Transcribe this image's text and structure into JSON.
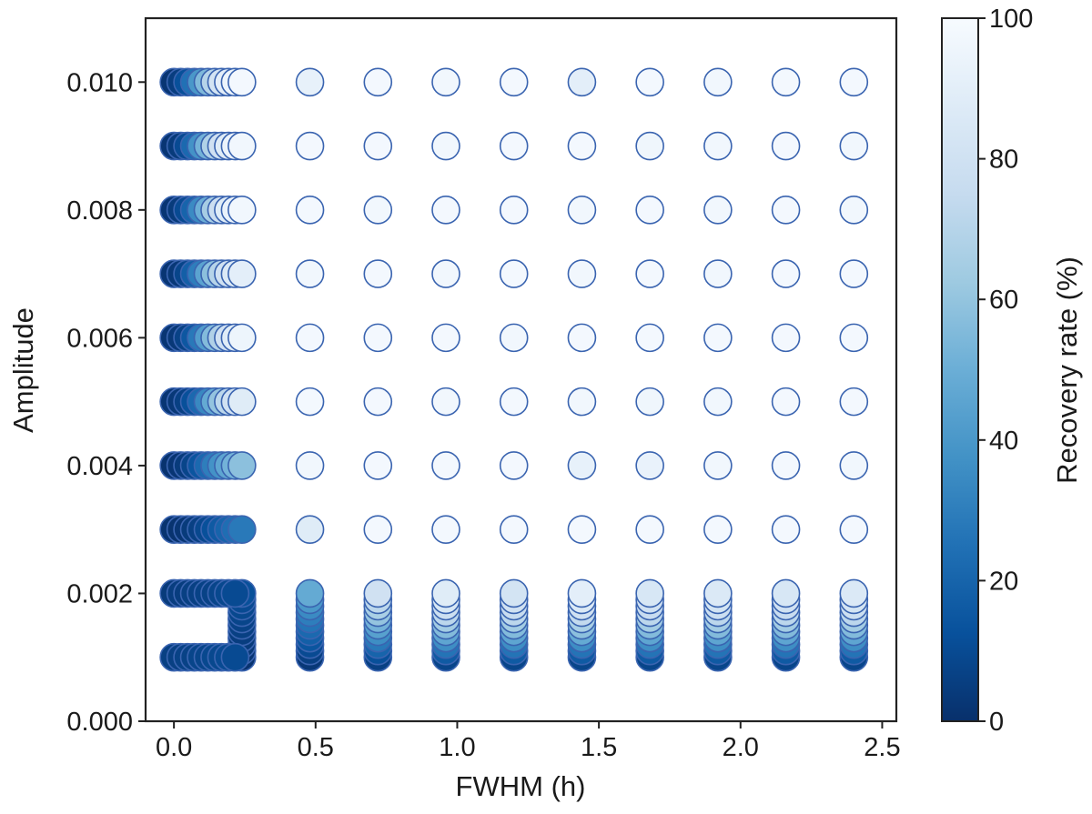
{
  "chart_data": {
    "type": "scatter",
    "title": "",
    "xlabel": "FWHM (h)",
    "ylabel": "Amplitude",
    "colorbar_label": "Recovery rate (%)",
    "xlim": [
      -0.1,
      2.55
    ],
    "ylim": [
      0.0,
      0.011
    ],
    "x_ticks": [
      "0.0",
      "0.5",
      "1.0",
      "1.5",
      "2.0",
      "2.5"
    ],
    "y_ticks": [
      "0.000",
      "0.002",
      "0.004",
      "0.006",
      "0.008",
      "0.010"
    ],
    "colorbar_ticks": [
      "0",
      "20",
      "40",
      "60",
      "80",
      "100"
    ],
    "colorbar_range": [
      0,
      100
    ],
    "colormap": "Blues_r",
    "marker_edge_color": "#3a64b0",
    "grid": false,
    "columns_x": [
      0.0,
      0.024,
      0.048,
      0.072,
      0.096,
      0.12,
      0.144,
      0.168,
      0.192,
      0.216,
      0.24,
      0.48,
      0.72,
      0.96,
      1.2,
      1.44,
      1.68,
      1.92,
      2.16,
      2.4
    ],
    "rows": [
      {
        "amplitude": 0.01,
        "recovery": [
          2,
          5,
          12,
          25,
          40,
          55,
          70,
          82,
          90,
          95,
          98,
          92,
          98,
          97,
          98,
          90,
          98,
          97,
          98,
          98
        ]
      },
      {
        "amplitude": 0.009,
        "recovery": [
          2,
          4,
          10,
          22,
          38,
          52,
          68,
          80,
          88,
          94,
          97,
          98,
          98,
          97,
          98,
          98,
          96,
          97,
          98,
          97
        ]
      },
      {
        "amplitude": 0.008,
        "recovery": [
          2,
          4,
          10,
          20,
          35,
          50,
          65,
          78,
          88,
          93,
          97,
          98,
          97,
          98,
          98,
          97,
          98,
          97,
          98,
          97
        ]
      },
      {
        "amplitude": 0.007,
        "recovery": [
          2,
          3,
          8,
          18,
          30,
          45,
          58,
          70,
          80,
          86,
          90,
          97,
          98,
          97,
          98,
          97,
          98,
          97,
          98,
          98
        ]
      },
      {
        "amplitude": 0.006,
        "recovery": [
          2,
          3,
          7,
          15,
          28,
          42,
          56,
          68,
          80,
          88,
          95,
          98,
          98,
          98,
          97,
          98,
          98,
          98,
          98,
          98
        ]
      },
      {
        "amplitude": 0.005,
        "recovery": [
          2,
          3,
          6,
          12,
          22,
          34,
          48,
          60,
          72,
          80,
          88,
          98,
          98,
          97,
          98,
          97,
          96,
          97,
          98,
          98
        ]
      },
      {
        "amplitude": 0.004,
        "recovery": [
          1,
          2,
          4,
          8,
          14,
          22,
          30,
          38,
          46,
          52,
          58,
          97,
          98,
          98,
          98,
          92,
          93,
          97,
          98,
          97
        ]
      },
      {
        "amplitude": 0.003,
        "recovery": [
          1,
          1,
          2,
          4,
          6,
          9,
          12,
          16,
          20,
          24,
          28,
          88,
          98,
          98,
          98,
          98,
          98,
          98,
          98,
          98
        ]
      }
    ],
    "stacks": [
      {
        "x": 0.24,
        "amplitudes": [
          0.001,
          0.0011,
          0.0012,
          0.0013,
          0.0014,
          0.0015,
          0.0016,
          0.0017,
          0.0018,
          0.0019,
          0.002
        ],
        "recovery": [
          1,
          2,
          3,
          4,
          5,
          6,
          7,
          8,
          9,
          10,
          12
        ]
      },
      {
        "x": 0.48,
        "amplitudes": [
          0.001,
          0.0011,
          0.0012,
          0.0013,
          0.0014,
          0.0015,
          0.0016,
          0.0017,
          0.0018,
          0.0019,
          0.002
        ],
        "recovery": [
          3,
          6,
          10,
          14,
          18,
          22,
          26,
          30,
          35,
          40,
          48
        ]
      },
      {
        "x": 0.72,
        "amplitudes": [
          0.001,
          0.0011,
          0.0012,
          0.0013,
          0.0014,
          0.0015,
          0.0016,
          0.0017,
          0.0018,
          0.0019,
          0.002
        ],
        "recovery": [
          6,
          12,
          20,
          28,
          36,
          44,
          52,
          60,
          66,
          72,
          80
        ]
      },
      {
        "x": 0.96,
        "amplitudes": [
          0.001,
          0.0011,
          0.0012,
          0.0013,
          0.0014,
          0.0015,
          0.0016,
          0.0017,
          0.0018,
          0.0019,
          0.002
        ],
        "recovery": [
          8,
          16,
          26,
          36,
          46,
          56,
          64,
          72,
          78,
          84,
          88
        ]
      },
      {
        "x": 1.2,
        "amplitudes": [
          0.001,
          0.0011,
          0.0012,
          0.0013,
          0.0014,
          0.0015,
          0.0016,
          0.0017,
          0.0018,
          0.0019,
          0.002
        ],
        "recovery": [
          8,
          16,
          26,
          36,
          46,
          56,
          64,
          72,
          76,
          80,
          82
        ]
      },
      {
        "x": 1.44,
        "amplitudes": [
          0.001,
          0.0011,
          0.0012,
          0.0013,
          0.0014,
          0.0015,
          0.0016,
          0.0017,
          0.0018,
          0.0019,
          0.002
        ],
        "recovery": [
          8,
          16,
          26,
          36,
          48,
          58,
          66,
          74,
          80,
          86,
          90
        ]
      },
      {
        "x": 1.68,
        "amplitudes": [
          0.001,
          0.0011,
          0.0012,
          0.0013,
          0.0014,
          0.0015,
          0.0016,
          0.0017,
          0.0018,
          0.0019,
          0.002
        ],
        "recovery": [
          8,
          16,
          26,
          36,
          46,
          56,
          64,
          72,
          76,
          80,
          84
        ]
      },
      {
        "x": 1.92,
        "amplitudes": [
          0.001,
          0.0011,
          0.0012,
          0.0013,
          0.0014,
          0.0015,
          0.0016,
          0.0017,
          0.0018,
          0.0019,
          0.002
        ],
        "recovery": [
          8,
          16,
          26,
          36,
          46,
          56,
          64,
          72,
          78,
          82,
          86
        ]
      },
      {
        "x": 2.16,
        "amplitudes": [
          0.001,
          0.0011,
          0.0012,
          0.0013,
          0.0014,
          0.0015,
          0.0016,
          0.0017,
          0.0018,
          0.0019,
          0.002
        ],
        "recovery": [
          8,
          16,
          26,
          36,
          46,
          56,
          64,
          72,
          76,
          80,
          84
        ]
      },
      {
        "x": 2.4,
        "amplitudes": [
          0.001,
          0.0011,
          0.0012,
          0.0013,
          0.0014,
          0.0015,
          0.0016,
          0.0017,
          0.0018,
          0.0019,
          0.002
        ],
        "recovery": [
          8,
          16,
          26,
          36,
          46,
          56,
          64,
          72,
          78,
          82,
          86
        ]
      }
    ],
    "row_0002": {
      "amplitude": 0.002,
      "x": [
        0.0,
        0.024,
        0.048,
        0.072,
        0.096,
        0.12,
        0.144,
        0.168,
        0.192,
        0.216
      ],
      "recovery": [
        4,
        5,
        5,
        6,
        6,
        7,
        7,
        8,
        9,
        10
      ]
    },
    "row_0001": {
      "amplitude": 0.001,
      "x": [
        0.0,
        0.024,
        0.048,
        0.072,
        0.096,
        0.12,
        0.144,
        0.168,
        0.192,
        0.216
      ],
      "recovery": [
        6,
        6,
        7,
        7,
        8,
        8,
        9,
        9,
        10,
        10
      ]
    }
  }
}
